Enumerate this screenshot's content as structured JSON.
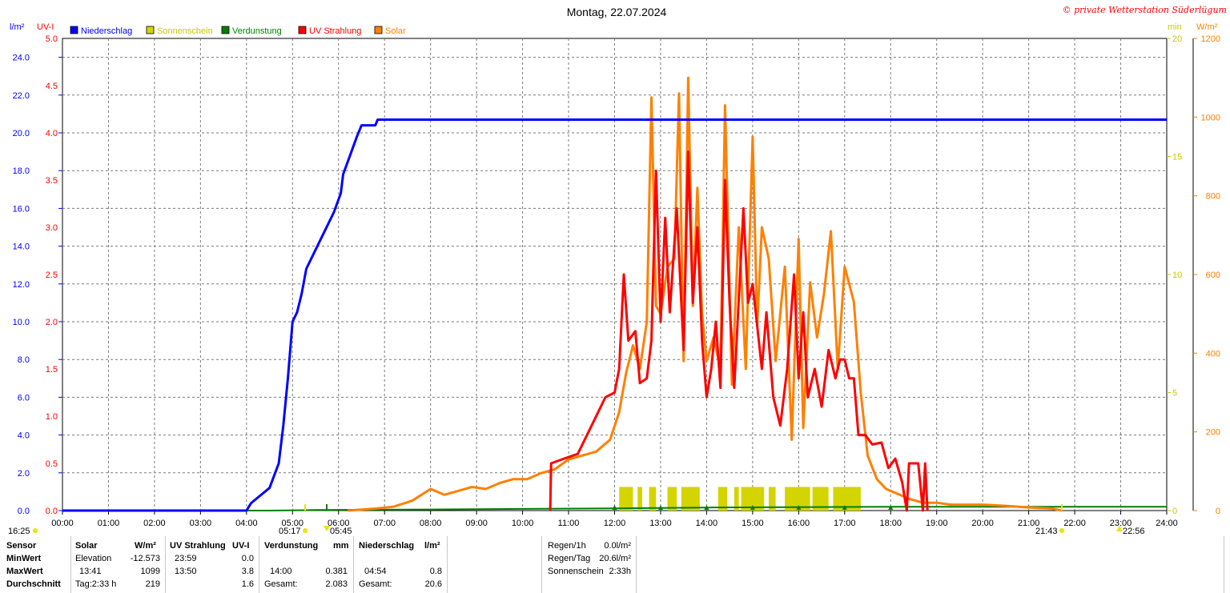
{
  "chart_data": {
    "type": "line",
    "title": "Montag, 22.07.2024",
    "copyright": "© private Wetterstation Süderlügum",
    "left_axis_1": {
      "unit": "l/m²",
      "ticks": [
        "0.0",
        "2.0",
        "4.0",
        "6.0",
        "8.0",
        "10.0",
        "12.0",
        "14.0",
        "16.0",
        "18.0",
        "20.0",
        "22.0",
        "24.0"
      ],
      "range": [
        0,
        25
      ]
    },
    "left_axis_2": {
      "unit": "UV-I",
      "ticks": [
        "0.0",
        "0.5",
        "1.0",
        "1.5",
        "2.0",
        "2.5",
        "3.0",
        "3.5",
        "4.0",
        "4.5",
        "5.0"
      ],
      "range": [
        0,
        5
      ]
    },
    "right_axis_1": {
      "unit": "min",
      "ticks": [
        "0",
        "5",
        "10",
        "15",
        "20"
      ],
      "range": [
        0,
        20
      ]
    },
    "right_axis_2": {
      "unit": "W/m²",
      "ticks": [
        "0",
        "200",
        "400",
        "600",
        "800",
        "1000",
        "1200"
      ],
      "range": [
        0,
        1200
      ]
    },
    "x_ticks": [
      "00:00",
      "01:00",
      "02:00",
      "03:00",
      "04:00",
      "05:00",
      "06:00",
      "07:00",
      "08:00",
      "09:00",
      "10:00",
      "11:00",
      "12:00",
      "13:00",
      "14:00",
      "15:00",
      "16:00",
      "17:00",
      "18:00",
      "19:00",
      "20:00",
      "21:00",
      "22:00",
      "23:00",
      "24:00"
    ],
    "x_range_hours": [
      0,
      24
    ],
    "grid": true,
    "legend_position": "top-left",
    "legend": [
      {
        "name": "Niederschlag",
        "color": "#0000ff"
      },
      {
        "name": "Sonnenschein",
        "color": "#d4d400"
      },
      {
        "name": "Verdunstung",
        "color": "#008000"
      },
      {
        "name": "UV Strahlung",
        "color": "#ff0000"
      },
      {
        "name": "Solar",
        "color": "#ff8000"
      }
    ],
    "colors": {
      "axis_lm": "#0000ff",
      "axis_uv": "#ff0000",
      "axis_min": "#c8c800",
      "axis_solar": "#ff8000"
    },
    "series": [
      {
        "key": "niederschlag",
        "axis": "lm",
        "color": "#0000ff",
        "points": [
          [
            0,
            0
          ],
          [
            4.0,
            0
          ],
          [
            4.1,
            0.4
          ],
          [
            4.3,
            0.8
          ],
          [
            4.5,
            1.2
          ],
          [
            4.7,
            2.5
          ],
          [
            4.8,
            4.5
          ],
          [
            4.9,
            7.0
          ],
          [
            5.0,
            10.0
          ],
          [
            5.1,
            10.5
          ],
          [
            5.2,
            11.5
          ],
          [
            5.3,
            12.8
          ],
          [
            5.5,
            13.8
          ],
          [
            5.7,
            14.8
          ],
          [
            5.9,
            15.8
          ],
          [
            6.05,
            16.8
          ],
          [
            6.1,
            17.8
          ],
          [
            6.25,
            18.8
          ],
          [
            6.4,
            19.8
          ],
          [
            6.5,
            20.4
          ],
          [
            6.8,
            20.4
          ],
          [
            6.85,
            20.7
          ],
          [
            24,
            20.7
          ]
        ]
      },
      {
        "key": "verdunstung",
        "axis": "lm",
        "color": "#008000",
        "points": [
          [
            0,
            0
          ],
          [
            4.5,
            0
          ],
          [
            5.5,
            0.03
          ],
          [
            8,
            0.06
          ],
          [
            10,
            0.09
          ],
          [
            12,
            0.12
          ],
          [
            14,
            0.16
          ],
          [
            18,
            0.2
          ],
          [
            24,
            0.2
          ]
        ]
      },
      {
        "key": "solar",
        "axis": "solar",
        "color": "#ff8000",
        "points": [
          [
            6.2,
            0
          ],
          [
            6.8,
            5
          ],
          [
            7.2,
            10
          ],
          [
            7.6,
            25
          ],
          [
            8.0,
            55
          ],
          [
            8.3,
            40
          ],
          [
            8.6,
            50
          ],
          [
            8.9,
            60
          ],
          [
            9.2,
            55
          ],
          [
            9.5,
            70
          ],
          [
            9.8,
            80
          ],
          [
            10.1,
            80
          ],
          [
            10.4,
            95
          ],
          [
            10.7,
            105
          ],
          [
            11.0,
            130
          ],
          [
            11.3,
            140
          ],
          [
            11.6,
            150
          ],
          [
            11.9,
            180
          ],
          [
            12.1,
            250
          ],
          [
            12.25,
            350
          ],
          [
            12.4,
            420
          ],
          [
            12.55,
            360
          ],
          [
            12.7,
            480
          ],
          [
            12.8,
            1050
          ],
          [
            12.9,
            520
          ],
          [
            13.0,
            500
          ],
          [
            13.15,
            620
          ],
          [
            13.3,
            640
          ],
          [
            13.4,
            1060
          ],
          [
            13.5,
            380
          ],
          [
            13.6,
            1100
          ],
          [
            13.7,
            520
          ],
          [
            13.8,
            820
          ],
          [
            13.9,
            500
          ],
          [
            14.0,
            380
          ],
          [
            14.15,
            440
          ],
          [
            14.3,
            360
          ],
          [
            14.4,
            1030
          ],
          [
            14.55,
            320
          ],
          [
            14.7,
            720
          ],
          [
            14.85,
            360
          ],
          [
            15.0,
            950
          ],
          [
            15.1,
            470
          ],
          [
            15.2,
            720
          ],
          [
            15.35,
            640
          ],
          [
            15.5,
            380
          ],
          [
            15.7,
            620
          ],
          [
            15.85,
            180
          ],
          [
            16.0,
            690
          ],
          [
            16.1,
            210
          ],
          [
            16.25,
            580
          ],
          [
            16.4,
            440
          ],
          [
            16.55,
            550
          ],
          [
            16.7,
            710
          ],
          [
            16.85,
            360
          ],
          [
            17.0,
            620
          ],
          [
            17.2,
            530
          ],
          [
            17.35,
            300
          ],
          [
            17.5,
            140
          ],
          [
            17.7,
            80
          ],
          [
            17.9,
            55
          ],
          [
            18.1,
            45
          ],
          [
            18.4,
            30
          ],
          [
            18.7,
            20
          ],
          [
            19.0,
            20
          ],
          [
            19.3,
            15
          ],
          [
            19.6,
            15
          ],
          [
            20.0,
            15
          ],
          [
            20.5,
            12
          ],
          [
            21.0,
            8
          ],
          [
            21.5,
            5
          ],
          [
            21.72,
            0
          ]
        ]
      },
      {
        "key": "uv",
        "axis": "uv",
        "color": "#ff0000",
        "points": [
          [
            10.6,
            0
          ],
          [
            10.62,
            0.5
          ],
          [
            10.9,
            0.55
          ],
          [
            11.2,
            0.6
          ],
          [
            11.5,
            0.9
          ],
          [
            11.8,
            1.2
          ],
          [
            12.0,
            1.25
          ],
          [
            12.1,
            1.5
          ],
          [
            12.2,
            2.5
          ],
          [
            12.3,
            1.8
          ],
          [
            12.45,
            1.9
          ],
          [
            12.55,
            1.35
          ],
          [
            12.7,
            1.4
          ],
          [
            12.8,
            1.8
          ],
          [
            12.9,
            3.6
          ],
          [
            13.0,
            2.0
          ],
          [
            13.1,
            3.1
          ],
          [
            13.2,
            2.1
          ],
          [
            13.35,
            3.2
          ],
          [
            13.5,
            1.7
          ],
          [
            13.6,
            3.8
          ],
          [
            13.7,
            2.2
          ],
          [
            13.8,
            3.0
          ],
          [
            13.9,
            1.8
          ],
          [
            14.0,
            1.2
          ],
          [
            14.1,
            1.5
          ],
          [
            14.2,
            2.0
          ],
          [
            14.3,
            1.3
          ],
          [
            14.4,
            3.5
          ],
          [
            14.5,
            2.2
          ],
          [
            14.6,
            1.3
          ],
          [
            14.8,
            3.2
          ],
          [
            14.9,
            2.2
          ],
          [
            15.0,
            2.4
          ],
          [
            15.2,
            1.5
          ],
          [
            15.3,
            2.1
          ],
          [
            15.45,
            1.2
          ],
          [
            15.6,
            0.9
          ],
          [
            15.75,
            1.5
          ],
          [
            15.9,
            2.5
          ],
          [
            16.0,
            1.4
          ],
          [
            16.1,
            2.1
          ],
          [
            16.2,
            1.2
          ],
          [
            16.35,
            1.5
          ],
          [
            16.5,
            1.1
          ],
          [
            16.65,
            1.7
          ],
          [
            16.8,
            1.4
          ],
          [
            16.9,
            1.6
          ],
          [
            17.0,
            1.6
          ],
          [
            17.1,
            1.4
          ],
          [
            17.2,
            1.4
          ],
          [
            17.3,
            0.8
          ],
          [
            17.45,
            0.8
          ],
          [
            17.6,
            0.7
          ],
          [
            17.8,
            0.72
          ],
          [
            17.95,
            0.45
          ],
          [
            18.1,
            0.55
          ],
          [
            18.25,
            0.3
          ],
          [
            18.35,
            0.0
          ],
          [
            18.4,
            0.5
          ],
          [
            18.6,
            0.5
          ],
          [
            18.7,
            0.0
          ],
          [
            18.75,
            0.5
          ],
          [
            18.8,
            0.0
          ]
        ]
      },
      {
        "key": "sonnenschein",
        "axis": "min",
        "type": "bar",
        "color": "#d4d400",
        "bars": [
          [
            12.1,
            12.4,
            1.0
          ],
          [
            12.5,
            12.6,
            1.0
          ],
          [
            12.75,
            12.9,
            1.0
          ],
          [
            13.15,
            13.35,
            1.0
          ],
          [
            13.45,
            13.85,
            1.0
          ],
          [
            14.25,
            14.45,
            1.0
          ],
          [
            14.6,
            14.7,
            1.0
          ],
          [
            14.75,
            15.25,
            1.0
          ],
          [
            15.35,
            15.5,
            1.0
          ],
          [
            15.7,
            16.25,
            1.0
          ],
          [
            16.3,
            16.65,
            1.0
          ],
          [
            16.75,
            17.35,
            1.0
          ]
        ]
      }
    ],
    "markers": {
      "left_corner": "16:25",
      "sunrise": "05:17",
      "sunrise2": "05:45",
      "sunset": "21:43",
      "sunset2": "22:56"
    }
  },
  "stats": {
    "row_labels": [
      "Sensor",
      "MinWert",
      "MaxWert",
      "Durchschnitt"
    ],
    "solar": {
      "header": "Solar",
      "unit": "W/m²",
      "min_label": "Elevation",
      "min_value": "-12.573",
      "max_time": "13:41",
      "max_value": "1099",
      "avg_label": "Tag:2:33 h",
      "avg_value": "219"
    },
    "uv": {
      "header": "UV Strahlung",
      "unit": "UV-I",
      "min_time": "23:59",
      "min_value": "0.0",
      "max_time": "13:50",
      "max_value": "3.8",
      "avg_value": "1.6"
    },
    "verdunstung": {
      "header": "Verdunstung",
      "unit": "mm",
      "max_time": "14:00",
      "max_value": "0.381",
      "total_label": "Gesamt:",
      "total_value": "2.083"
    },
    "niederschlag": {
      "header": "Niederschlag",
      "unit": "l/m²",
      "max_time": "04:54",
      "max_value": "0.8",
      "total_label": "Gesamt:",
      "total_value": "20.6"
    },
    "extra": {
      "regen_h_label": "Regen/1h",
      "regen_h_value": "0.0l/m²",
      "regen_tag_label": "Regen/Tag",
      "regen_tag_value": "20.6l/m²",
      "sonnenschein_label": "Sonnenschein",
      "sonnenschein_value": "2:33h"
    }
  }
}
